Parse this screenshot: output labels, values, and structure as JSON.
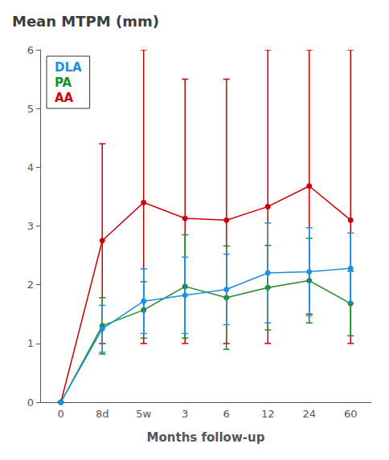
{
  "chart_data": {
    "type": "line",
    "title": "Mean MTPM (mm)",
    "x_label": "Months follow-up",
    "categories": [
      "0",
      "8d",
      "5w",
      "3",
      "6",
      "12",
      "24",
      "60"
    ],
    "series": [
      {
        "name": "DLA",
        "color": "#1B8EE6",
        "marker": "circle",
        "line_style": "solid",
        "values": [
          0,
          1.25,
          1.72,
          1.82,
          1.92,
          2.2,
          2.22,
          2.28
        ],
        "yerr_low": [
          0,
          0.4,
          0.55,
          0.65,
          0.6,
          0.85,
          0.75,
          0.6
        ],
        "yerr_high": [
          0,
          0.4,
          0.55,
          0.65,
          0.6,
          0.85,
          0.75,
          0.6
        ]
      },
      {
        "name": "PA",
        "color": "#1D8C1D",
        "marker": "circle",
        "line_style": "solid",
        "values": [
          0,
          1.3,
          1.57,
          1.97,
          1.78,
          1.95,
          2.07,
          1.68
        ],
        "yerr_low": [
          0,
          0.48,
          0.48,
          0.88,
          0.88,
          0.72,
          0.72,
          0.55
        ],
        "yerr_high": [
          0,
          0.48,
          0.48,
          0.88,
          0.88,
          0.72,
          0.72,
          0.55
        ]
      },
      {
        "name": "AA",
        "color": "#CC0000",
        "marker": "circle",
        "line_style": "solid",
        "values": [
          0,
          2.75,
          3.4,
          3.13,
          3.1,
          3.33,
          3.68,
          3.1
        ],
        "yerr_low": [
          0,
          1.75,
          2.4,
          2.13,
          2.1,
          2.33,
          2.18,
          2.1
        ],
        "yerr_high": [
          0,
          1.65,
          2.6,
          2.37,
          2.4,
          2.67,
          2.32,
          2.9
        ]
      }
    ],
    "ylim": [
      0,
      6
    ],
    "yticks": [
      0,
      1,
      2,
      3,
      4,
      5,
      6
    ],
    "grid": false,
    "legend": "upper left"
  }
}
